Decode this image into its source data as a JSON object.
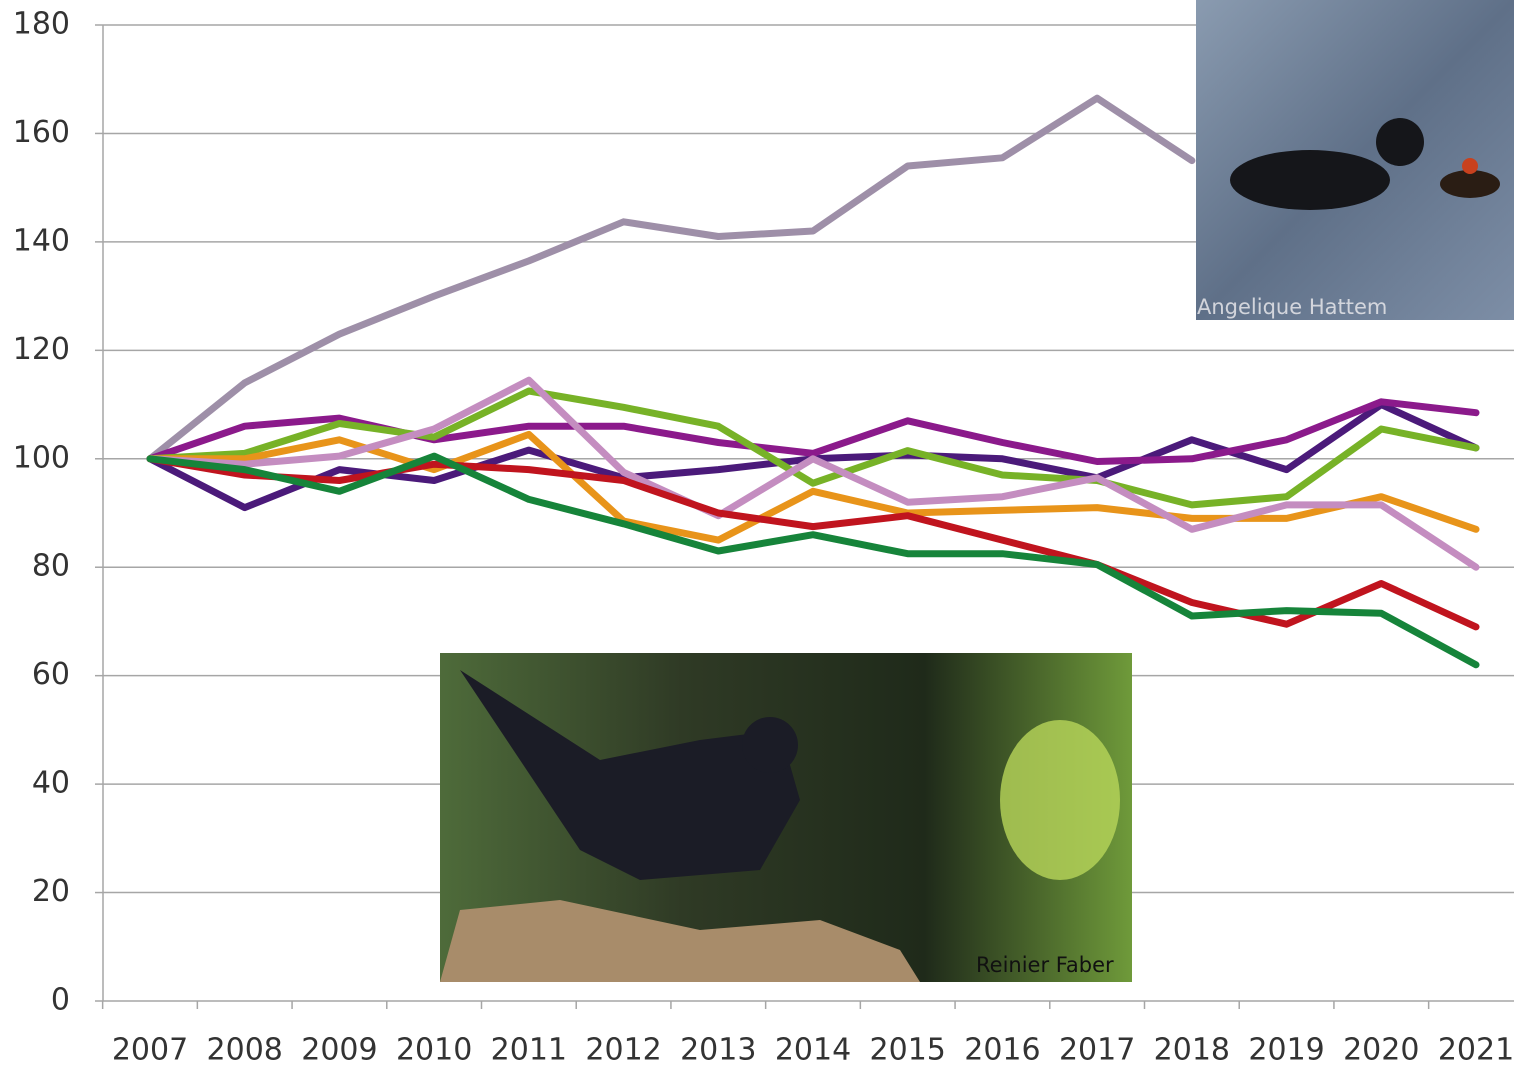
{
  "chart_data": {
    "type": "line",
    "categories": [
      "2007",
      "2008",
      "2009",
      "2010",
      "2011",
      "2012",
      "2013",
      "2014",
      "2015",
      "2016",
      "2017",
      "2018",
      "2019",
      "2020",
      "2021"
    ],
    "ylim": [
      0,
      180
    ],
    "yticks": [
      0,
      20,
      40,
      60,
      80,
      100,
      120,
      140,
      160,
      180
    ],
    "grid": true,
    "series": [
      {
        "color": "#9e8fa8",
        "values": [
          100,
          114,
          123,
          130,
          136.5,
          143.7,
          141,
          142,
          154,
          155.5,
          166.5,
          155,
          null,
          null,
          null
        ]
      },
      {
        "color": "#4b1a7a",
        "values": [
          100,
          91,
          98,
          96,
          101.6,
          96.5,
          98,
          100,
          100.7,
          100,
          96.5,
          103.5,
          98,
          110,
          102
        ]
      },
      {
        "color": "#8b1a8b",
        "values": [
          100,
          106,
          107.5,
          103.5,
          106,
          106,
          103,
          101,
          107,
          103,
          99.5,
          100,
          103.5,
          110.5,
          108.5
        ]
      },
      {
        "color": "#77b227",
        "values": [
          100,
          101,
          106.5,
          104,
          112.5,
          109.5,
          106,
          95.5,
          101.5,
          97,
          96,
          91.5,
          93,
          105.5,
          102
        ]
      },
      {
        "color": "#e8941a",
        "values": [
          100,
          100,
          103.5,
          98,
          104.5,
          88.5,
          85,
          94,
          90,
          90.5,
          91,
          89,
          89,
          93,
          87
        ]
      },
      {
        "color": "#c48dc0",
        "values": [
          100,
          99,
          100.5,
          105.5,
          114.5,
          97.5,
          89.5,
          100,
          92,
          93,
          96.5,
          87,
          91.5,
          91.5,
          80
        ]
      },
      {
        "color": "#c0141e",
        "values": [
          100,
          97,
          96,
          99,
          98,
          96,
          90,
          87.5,
          89.5,
          85,
          80.5,
          73.5,
          69.5,
          77,
          69
        ]
      },
      {
        "color": "#16843a",
        "values": [
          100,
          98,
          94,
          100.5,
          92.5,
          88,
          83,
          86,
          82.5,
          82.5,
          80.5,
          71,
          72,
          71.5,
          62
        ]
      }
    ]
  },
  "photos": [
    {
      "credit": "Angelique Hattem"
    },
    {
      "credit": "Reinier Faber"
    }
  ]
}
